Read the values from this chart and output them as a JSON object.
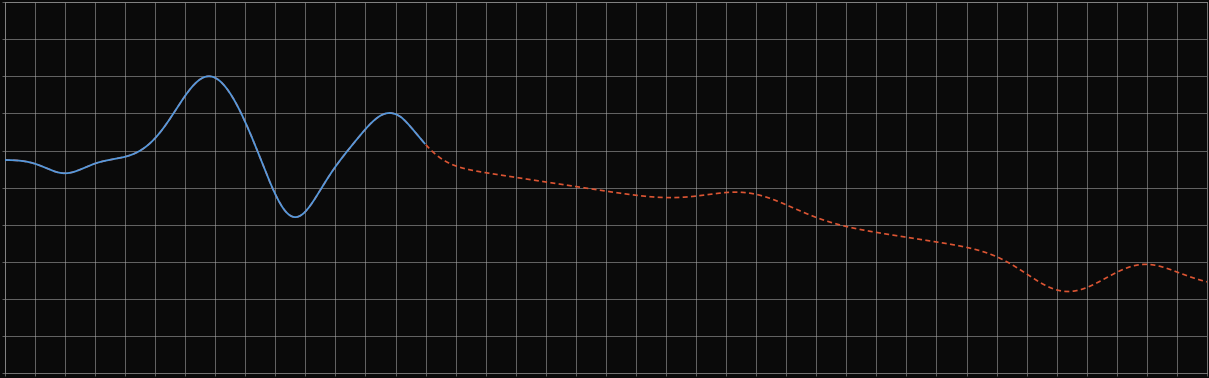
{
  "background_color": "#0a0a0a",
  "plot_bg_color": "#0a0a0a",
  "grid_color": "#aaaaaa",
  "line1_color": "#5599dd",
  "line2_color": "#dd5533",
  "figsize": [
    12.09,
    3.78
  ],
  "dpi": 100,
  "xlim": [
    0,
    100
  ],
  "ylim": [
    0,
    10
  ],
  "spine_color": "#888888",
  "grid_linewidth": 0.4,
  "line_linewidth": 1.2
}
